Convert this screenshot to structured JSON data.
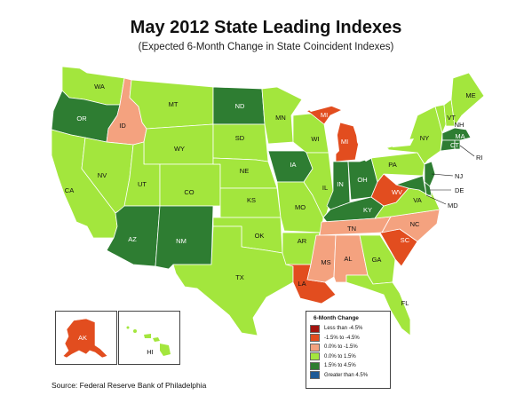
{
  "title": "May 2012 State Leading Indexes",
  "subtitle": "(Expected 6-Month Change in State Coincident Indexes)",
  "source": "Source: Federal Reserve Bank of Philadelphia",
  "colors": {
    "lt_m45": "#a3140f",
    "m15_m45": "#e24d1f",
    "z_m15": "#f4a27f",
    "z_15": "#a3e63d",
    "p15_45": "#2e7d32",
    "gt_45": "#1f5a96",
    "lake": "#ffffff"
  },
  "legend": {
    "title": "6-Month Change",
    "items": [
      {
        "label": "Less than -4.5%",
        "color": "#a3140f"
      },
      {
        "label": "-1.5% to -4.5%",
        "color": "#e24d1f"
      },
      {
        "label": "0.0% to -1.5%",
        "color": "#f4a27f"
      },
      {
        "label": "0.0% to  1.5%",
        "color": "#a3e63d"
      },
      {
        "label": "1.5% to  4.5%",
        "color": "#2e7d32"
      },
      {
        "label": "Greater than 4.5%",
        "color": "#1f5a96"
      }
    ]
  },
  "states": [
    {
      "abbr": "WA",
      "category": "0.0% to 1.5%"
    },
    {
      "abbr": "OR",
      "category": "1.5% to 4.5%"
    },
    {
      "abbr": "CA",
      "category": "0.0% to 1.5%"
    },
    {
      "abbr": "ID",
      "category": "0.0% to -1.5%"
    },
    {
      "abbr": "NV",
      "category": "0.0% to 1.5%"
    },
    {
      "abbr": "MT",
      "category": "0.0% to 1.5%"
    },
    {
      "abbr": "WY",
      "category": "0.0% to 1.5%"
    },
    {
      "abbr": "UT",
      "category": "0.0% to 1.5%"
    },
    {
      "abbr": "CO",
      "category": "0.0% to 1.5%"
    },
    {
      "abbr": "AZ",
      "category": "1.5% to 4.5%"
    },
    {
      "abbr": "NM",
      "category": "1.5% to 4.5%"
    },
    {
      "abbr": "ND",
      "category": "1.5% to 4.5%"
    },
    {
      "abbr": "SD",
      "category": "0.0% to 1.5%"
    },
    {
      "abbr": "NE",
      "category": "0.0% to 1.5%"
    },
    {
      "abbr": "KS",
      "category": "0.0% to 1.5%"
    },
    {
      "abbr": "OK",
      "category": "0.0% to 1.5%"
    },
    {
      "abbr": "TX",
      "category": "0.0% to 1.5%"
    },
    {
      "abbr": "MN",
      "category": "0.0% to 1.5%"
    },
    {
      "abbr": "IA",
      "category": "1.5% to 4.5%"
    },
    {
      "abbr": "MO",
      "category": "0.0% to 1.5%"
    },
    {
      "abbr": "AR",
      "category": "0.0% to 1.5%"
    },
    {
      "abbr": "LA",
      "category": "-1.5% to -4.5%"
    },
    {
      "abbr": "WI",
      "category": "0.0% to 1.5%"
    },
    {
      "abbr": "IL",
      "category": "0.0% to 1.5%"
    },
    {
      "abbr": "MI",
      "category": "-1.5% to -4.5%"
    },
    {
      "abbr": "IN",
      "category": "1.5% to 4.5%"
    },
    {
      "abbr": "OH",
      "category": "1.5% to 4.5%"
    },
    {
      "abbr": "KY",
      "category": "1.5% to 4.5%"
    },
    {
      "abbr": "TN",
      "category": "0.0% to -1.5%"
    },
    {
      "abbr": "MS",
      "category": "0.0% to -1.5%"
    },
    {
      "abbr": "AL",
      "category": "0.0% to -1.5%"
    },
    {
      "abbr": "GA",
      "category": "0.0% to 1.5%"
    },
    {
      "abbr": "FL",
      "category": "0.0% to 1.5%"
    },
    {
      "abbr": "SC",
      "category": "-1.5% to -4.5%"
    },
    {
      "abbr": "NC",
      "category": "0.0% to -1.5%"
    },
    {
      "abbr": "VA",
      "category": "0.0% to 1.5%"
    },
    {
      "abbr": "WV",
      "category": "-1.5% to -4.5%"
    },
    {
      "abbr": "PA",
      "category": "0.0% to 1.5%"
    },
    {
      "abbr": "NY",
      "category": "0.0% to 1.5%"
    },
    {
      "abbr": "VT",
      "category": "0.0% to 1.5%"
    },
    {
      "abbr": "NH",
      "category": "0.0% to 1.5%"
    },
    {
      "abbr": "ME",
      "category": "0.0% to 1.5%"
    },
    {
      "abbr": "MA",
      "category": "1.5% to 4.5%"
    },
    {
      "abbr": "CT",
      "category": "1.5% to 4.5%"
    },
    {
      "abbr": "RI",
      "category": "1.5% to 4.5%"
    },
    {
      "abbr": "NJ",
      "category": "1.5% to 4.5%"
    },
    {
      "abbr": "DE",
      "category": "1.5% to 4.5%"
    },
    {
      "abbr": "MD",
      "category": "1.5% to 4.5%"
    },
    {
      "abbr": "AK",
      "category": "-1.5% to -4.5%"
    },
    {
      "abbr": "HI",
      "category": "0.0% to 1.5%"
    }
  ]
}
